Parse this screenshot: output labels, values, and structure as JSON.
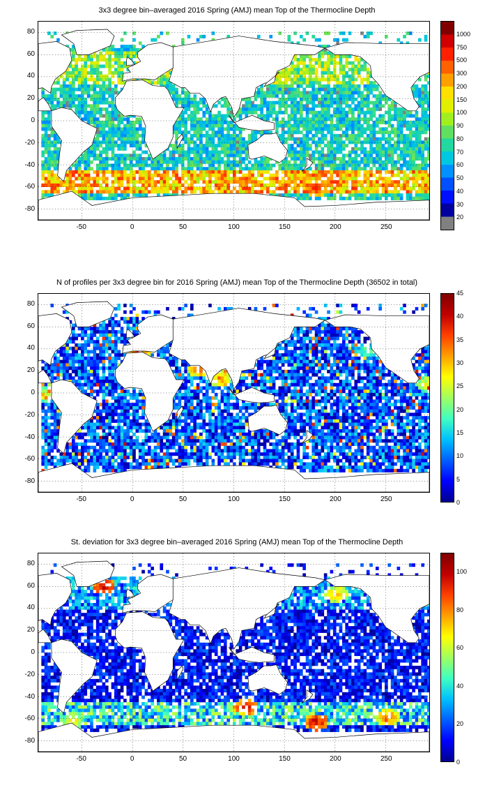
{
  "panels": [
    {
      "title": "3x3 degree bin–averaged 2016 Spring (AMJ) mean Top of the Thermocline Depth",
      "colorbar": {
        "ticks": [
          "1000",
          "750",
          "500",
          "300",
          "200",
          "150",
          "100",
          "90",
          "80",
          "70",
          "60",
          "50",
          "40",
          "30",
          "20"
        ],
        "discrete": true,
        "palette": [
          "#00009f",
          "#0010ff",
          "#0050ff",
          "#0090ff",
          "#00c8e0",
          "#20d8a0",
          "#60e060",
          "#a0f020",
          "#e0f000",
          "#ffe000",
          "#ffa000",
          "#ff6000",
          "#ff2000",
          "#d00000",
          "#800000"
        ],
        "lowest_color": "#808080"
      },
      "hotspots": [
        {
          "lon": 180,
          "lat": -60,
          "level": 0.95
        },
        {
          "lon": 110,
          "lat": -52,
          "level": 0.85
        },
        {
          "lon": -60,
          "lat": -60,
          "level": 0.8
        },
        {
          "lon": 20,
          "lat": -50,
          "level": 0.75
        },
        {
          "lon": 250,
          "lat": -58,
          "level": 0.85
        },
        {
          "lon": 150,
          "lat": 40,
          "level": 0.7
        },
        {
          "lon": -30,
          "lat": 60,
          "level": 0.65
        },
        {
          "lon": 200,
          "lat": 50,
          "level": 0.6
        }
      ]
    },
    {
      "title": "N of profiles per 3x3 degree bin for 2016 Spring (AMJ) mean Top of the Thermocline Depth  (36502 in total)",
      "colorbar": {
        "ticks": [
          "45",
          "40",
          "35",
          "30",
          "25",
          "20",
          "15",
          "10",
          "5",
          "0"
        ],
        "discrete": false,
        "palette": [
          "#00008f",
          "#0000ff",
          "#0060ff",
          "#00c0ff",
          "#40ffc0",
          "#a0ff60",
          "#ffff00",
          "#ffa000",
          "#ff4000",
          "#c00000",
          "#800000"
        ],
        "range": [
          0,
          45
        ]
      },
      "hotspots": [
        {
          "lon": 5,
          "lat": 40,
          "level": 0.9
        },
        {
          "lon": 65,
          "lat": 23,
          "level": 0.85
        },
        {
          "lon": 85,
          "lat": 15,
          "level": 0.8
        },
        {
          "lon": -90,
          "lat": 0,
          "level": 0.7
        },
        {
          "lon": 290,
          "lat": 10,
          "level": 0.7
        },
        {
          "lon": 230,
          "lat": 40,
          "level": 0.55
        }
      ]
    },
    {
      "title": "St. deviation for 3x3 degree bin–averaged 2016 Spring (AMJ) mean Top of the Thermocline Depth",
      "colorbar": {
        "ticks": [
          "100",
          "80",
          "60",
          "40",
          "20",
          "0"
        ],
        "discrete": false,
        "palette": [
          "#00008f",
          "#0000ff",
          "#0060ff",
          "#00c0ff",
          "#40ffc0",
          "#a0ff60",
          "#ffff00",
          "#ffa000",
          "#ff4000",
          "#c00000",
          "#800000"
        ],
        "range": [
          0,
          110
        ]
      },
      "hotspots": [
        {
          "lon": -30,
          "lat": 62,
          "level": 1.0
        },
        {
          "lon": 180,
          "lat": -62,
          "level": 1.0
        },
        {
          "lon": 110,
          "lat": -48,
          "level": 0.95
        },
        {
          "lon": 200,
          "lat": 55,
          "level": 0.8
        },
        {
          "lon": 250,
          "lat": -58,
          "level": 0.85
        },
        {
          "lon": -60,
          "lat": -60,
          "level": 0.7
        }
      ]
    }
  ],
  "map_extent": {
    "lon": [
      -93,
      293
    ],
    "lat": [
      -90,
      90
    ]
  },
  "x_ticks": [
    "-50",
    "0",
    "50",
    "100",
    "150",
    "200",
    "250"
  ],
  "y_ticks": [
    "80",
    "60",
    "40",
    "20",
    "0",
    "-20",
    "-40",
    "-60",
    "-80"
  ],
  "grid": "dotted"
}
